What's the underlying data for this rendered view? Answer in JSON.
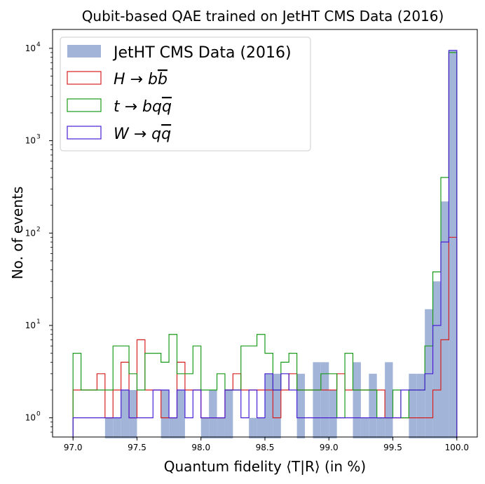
{
  "chart_data": {
    "type": "histogram",
    "title": "Qubit-based QAE trained on JetHT CMS Data (2016)",
    "xlabel": "Quantum fidelity ⟨T|R⟩ (in %)",
    "ylabel": "No. of events",
    "xlim": [
      96.84,
      100.16
    ],
    "ylim": [
      0.62,
      16000
    ],
    "yscale": "log",
    "bins": {
      "start": 97.0,
      "end": 100.0,
      "count": 48
    },
    "x_ticks": [
      "97.0",
      "97.5",
      "98.0",
      "98.5",
      "99.0",
      "99.5",
      "100.0"
    ],
    "x_tick_values": [
      97.0,
      97.5,
      98.0,
      98.5,
      99.0,
      99.5,
      100.0
    ],
    "y_ticks": [
      {
        "value": 1,
        "base": "10",
        "exp": "0"
      },
      {
        "value": 10,
        "base": "10",
        "exp": "1"
      },
      {
        "value": 100,
        "base": "10",
        "exp": "2"
      },
      {
        "value": 1000,
        "base": "10",
        "exp": "3"
      },
      {
        "value": 10000,
        "base": "10",
        "exp": "4"
      }
    ],
    "legend_position": "top-left",
    "series": [
      {
        "name": "JetHT CMS Data (2016)",
        "label": "JetHT CMS Data (2016)",
        "style": "filled",
        "color": "#a2b5d9",
        "values": [
          0,
          0,
          0,
          0,
          1,
          1,
          2,
          2,
          0,
          0,
          0,
          2,
          1,
          2,
          0,
          0,
          1,
          2,
          1,
          2,
          0,
          0,
          1,
          1,
          3,
          3,
          0,
          0,
          3,
          0,
          4,
          4,
          2,
          0,
          0,
          4,
          1,
          3,
          1,
          4,
          0,
          0,
          3,
          3,
          15,
          30,
          220,
          9500
        ]
      },
      {
        "name": "H → b b̄",
        "label_main": "H → b",
        "label_bar": "b",
        "style": "step",
        "color": "#d62020",
        "values": [
          2,
          2,
          2,
          3,
          1,
          2,
          4,
          1,
          7,
          2,
          2,
          1,
          1,
          4,
          2,
          2,
          1,
          1,
          1,
          2,
          3,
          2,
          2,
          2,
          2,
          1,
          2,
          3,
          2,
          2,
          2,
          2,
          2,
          3,
          2,
          2,
          2,
          2,
          2,
          1,
          1,
          1,
          1,
          1,
          1,
          2,
          7,
          90
        ]
      },
      {
        "name": "t → b q q̄",
        "label_main": "t → bq",
        "label_bar": "q",
        "style": "step",
        "color": "#1a9a1a",
        "values": [
          5,
          2,
          2,
          2,
          2,
          6,
          6,
          3,
          2,
          5,
          5,
          4,
          8,
          3,
          3,
          6,
          2,
          2,
          3,
          2,
          2,
          6,
          6,
          8,
          5,
          2,
          4,
          5,
          2,
          2,
          2,
          3,
          3,
          1,
          5,
          2,
          2,
          2,
          1,
          1,
          2,
          1,
          2,
          2,
          6,
          38,
          400,
          9000
        ]
      },
      {
        "name": "W → q q̄",
        "label_main": "W → q",
        "label_bar": "q",
        "style": "step",
        "color": "#4a1fd4",
        "values": [
          1,
          1,
          1,
          1,
          1,
          1,
          2,
          1,
          1,
          1,
          2,
          2,
          1,
          2,
          1,
          2,
          1,
          1,
          1,
          2,
          2,
          1,
          2,
          1,
          3,
          2,
          3,
          2,
          1,
          1,
          1,
          1,
          1,
          1,
          1,
          1,
          1,
          1,
          1,
          1,
          1,
          2,
          2,
          2,
          3,
          10,
          80,
          9500
        ]
      }
    ]
  }
}
